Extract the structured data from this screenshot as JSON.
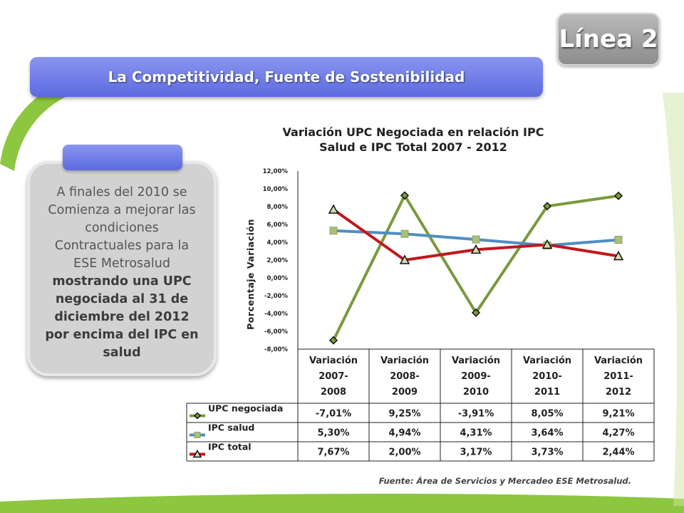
{
  "badge": {
    "label": "Línea 2"
  },
  "banner": {
    "title": "La Competitividad, Fuente de Sostenibilidad"
  },
  "note": {
    "text_normal": "A finales del 2010 se Comienza a mejorar las condiciones Contractuales para la ESE Metrosalud",
    "text_bold": "mostrando una UPC negociada al 31 de diciembre del 2012 por encima del IPC en salud"
  },
  "source": {
    "text": "Fuente: Área de Servicios y Mercadeo ESE Metrosalud."
  },
  "colors": {
    "upc": "#7a9a3c",
    "ipc_salud": "#4f8ec2",
    "ipc_total": "#c0181c"
  },
  "chart_data": {
    "type": "line",
    "title": "Variación UPC Negociada en relación IPC Salud  e IPC Total  2007 - 2012",
    "ylabel": "Porcentaje Variación",
    "ylim": [
      -8,
      12
    ],
    "yticks": [
      "12,00%",
      "10,00%",
      "8,00%",
      "6,00%",
      "4,00%",
      "2,00%",
      "0,00%",
      "-2,00%",
      "-4,00%",
      "-6,00%",
      "-8,00%"
    ],
    "ytick_values": [
      12,
      10,
      8,
      6,
      4,
      2,
      0,
      -2,
      -4,
      -6,
      -8
    ],
    "categories": [
      [
        "Variación",
        "2007-",
        "2008"
      ],
      [
        "Variación",
        "2008-",
        "2009"
      ],
      [
        "Variación",
        "2009-",
        "2010"
      ],
      [
        "Variación",
        "2010-",
        "2011"
      ],
      [
        "Variación",
        "2011-",
        "2012"
      ]
    ],
    "series": [
      {
        "name": "UPC negociada",
        "values": [
          -7.01,
          9.25,
          -3.91,
          8.05,
          9.21
        ],
        "labels": [
          "-7,01%",
          "9,25%",
          "-3,91%",
          "8,05%",
          "9,21%"
        ],
        "marker": "diamond"
      },
      {
        "name": "IPC salud",
        "values": [
          5.3,
          4.94,
          4.31,
          3.64,
          4.27
        ],
        "labels": [
          "5,30%",
          "4,94%",
          "4,31%",
          "3,64%",
          "4,27%"
        ],
        "marker": "square"
      },
      {
        "name": "IPC total",
        "values": [
          7.67,
          2.0,
          3.17,
          3.73,
          2.44
        ],
        "labels": [
          "7,67%",
          "2,00%",
          "3,17%",
          "3,73%",
          "2,44%"
        ],
        "marker": "triangle"
      }
    ]
  }
}
